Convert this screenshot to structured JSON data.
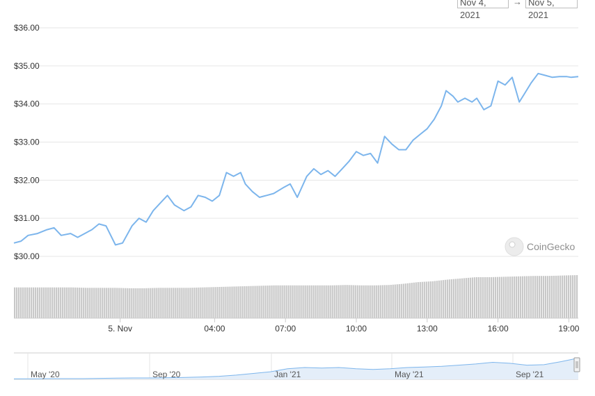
{
  "date_range": {
    "from": "Nov 4, 2021",
    "arrow": "→",
    "to": "Nov 5, 2021"
  },
  "watermark": "CoinGecko",
  "colors": {
    "line": "#7cb5ec",
    "volume": "#c8c8c8",
    "grid": "#e6e6e6",
    "navigator_fill": "#e4eef9"
  },
  "chart_data": {
    "type": "line",
    "title": "",
    "xlabel": "",
    "ylabel": "",
    "ylim": [
      29.7,
      36.3
    ],
    "yticks": [
      "$30.00",
      "$31.00",
      "$32.00",
      "$33.00",
      "$34.00",
      "$35.00",
      "$36.00"
    ],
    "ytick_values": [
      30,
      31,
      32,
      33,
      34,
      35,
      36
    ],
    "xticks": [
      "5. Nov",
      "04:00",
      "07:00",
      "10:00",
      "13:00",
      "16:00",
      "19:00"
    ],
    "xtick_hours": [
      24,
      28,
      31,
      34,
      37,
      40,
      43
    ],
    "xlim_hours": [
      19.5,
      43.4
    ],
    "series": [
      {
        "x_hours": [
          19.5,
          19.8,
          20.1,
          20.5,
          20.9,
          21.2,
          21.5,
          21.9,
          22.2,
          22.5,
          22.8,
          23.1,
          23.4,
          23.8,
          24.1,
          24.5,
          24.8,
          25.1,
          25.4,
          25.7,
          26.0,
          26.3,
          26.7,
          27.0,
          27.3,
          27.6,
          27.9,
          28.2,
          28.5,
          28.8,
          29.1,
          29.3,
          29.6,
          29.9,
          30.2,
          30.5,
          30.9,
          31.2,
          31.5,
          31.9,
          32.2,
          32.5,
          32.8,
          33.1,
          33.4,
          33.7,
          34.0,
          34.3,
          34.6,
          34.9,
          35.2,
          35.5,
          35.8,
          36.1,
          36.4,
          36.7,
          37.0,
          37.3,
          37.6,
          37.8,
          38.1,
          38.3,
          38.6,
          38.9,
          39.1,
          39.4,
          39.7,
          40.0,
          40.3,
          40.6,
          40.9,
          41.1,
          41.4,
          41.7,
          42.0,
          42.3,
          42.6,
          42.9,
          43.1,
          43.4
        ],
        "values": [
          30.35,
          30.4,
          30.55,
          30.6,
          30.7,
          30.75,
          30.55,
          30.6,
          30.5,
          30.6,
          30.7,
          30.85,
          30.8,
          30.3,
          30.35,
          30.8,
          31.0,
          30.9,
          31.2,
          31.4,
          31.6,
          31.35,
          31.2,
          31.3,
          31.6,
          31.55,
          31.45,
          31.6,
          32.2,
          32.1,
          32.2,
          31.9,
          31.7,
          31.55,
          31.6,
          31.65,
          31.8,
          31.9,
          31.55,
          32.1,
          32.3,
          32.15,
          32.25,
          32.1,
          32.3,
          32.5,
          32.75,
          32.65,
          32.7,
          32.45,
          33.15,
          32.95,
          32.8,
          32.8,
          33.05,
          33.2,
          33.35,
          33.6,
          33.95,
          34.35,
          34.2,
          34.05,
          34.15,
          34.05,
          34.15,
          33.85,
          33.95,
          34.6,
          34.5,
          34.7,
          34.05,
          34.25,
          34.55,
          34.8,
          34.75,
          34.7,
          34.72,
          34.72,
          34.7,
          34.72
        ]
      }
    ],
    "volume": {
      "values": [
        0.75,
        0.75,
        0.75,
        0.75,
        0.75,
        0.74,
        0.74,
        0.74,
        0.73,
        0.73,
        0.74,
        0.74,
        0.74,
        0.75,
        0.76,
        0.77,
        0.78,
        0.79,
        0.8,
        0.8,
        0.8,
        0.8,
        0.8,
        0.81,
        0.8,
        0.8,
        0.81,
        0.84,
        0.88,
        0.9,
        0.94,
        0.97,
        1.0,
        1.0,
        1.01,
        1.02,
        1.03,
        1.03,
        1.04,
        1.05
      ]
    },
    "navigator": {
      "labels": [
        "May '20",
        "Sep '20",
        "Jan '21",
        "May '21",
        "Sep '21"
      ],
      "values": [
        0.02,
        0.02,
        0.03,
        0.03,
        0.03,
        0.04,
        0.05,
        0.06,
        0.06,
        0.07,
        0.08,
        0.1,
        0.13,
        0.18,
        0.25,
        0.32,
        0.45,
        0.5,
        0.48,
        0.5,
        0.45,
        0.42,
        0.45,
        0.5,
        0.52,
        0.55,
        0.6,
        0.65,
        0.72,
        0.68,
        0.6,
        0.62,
        0.75,
        0.9
      ]
    }
  }
}
